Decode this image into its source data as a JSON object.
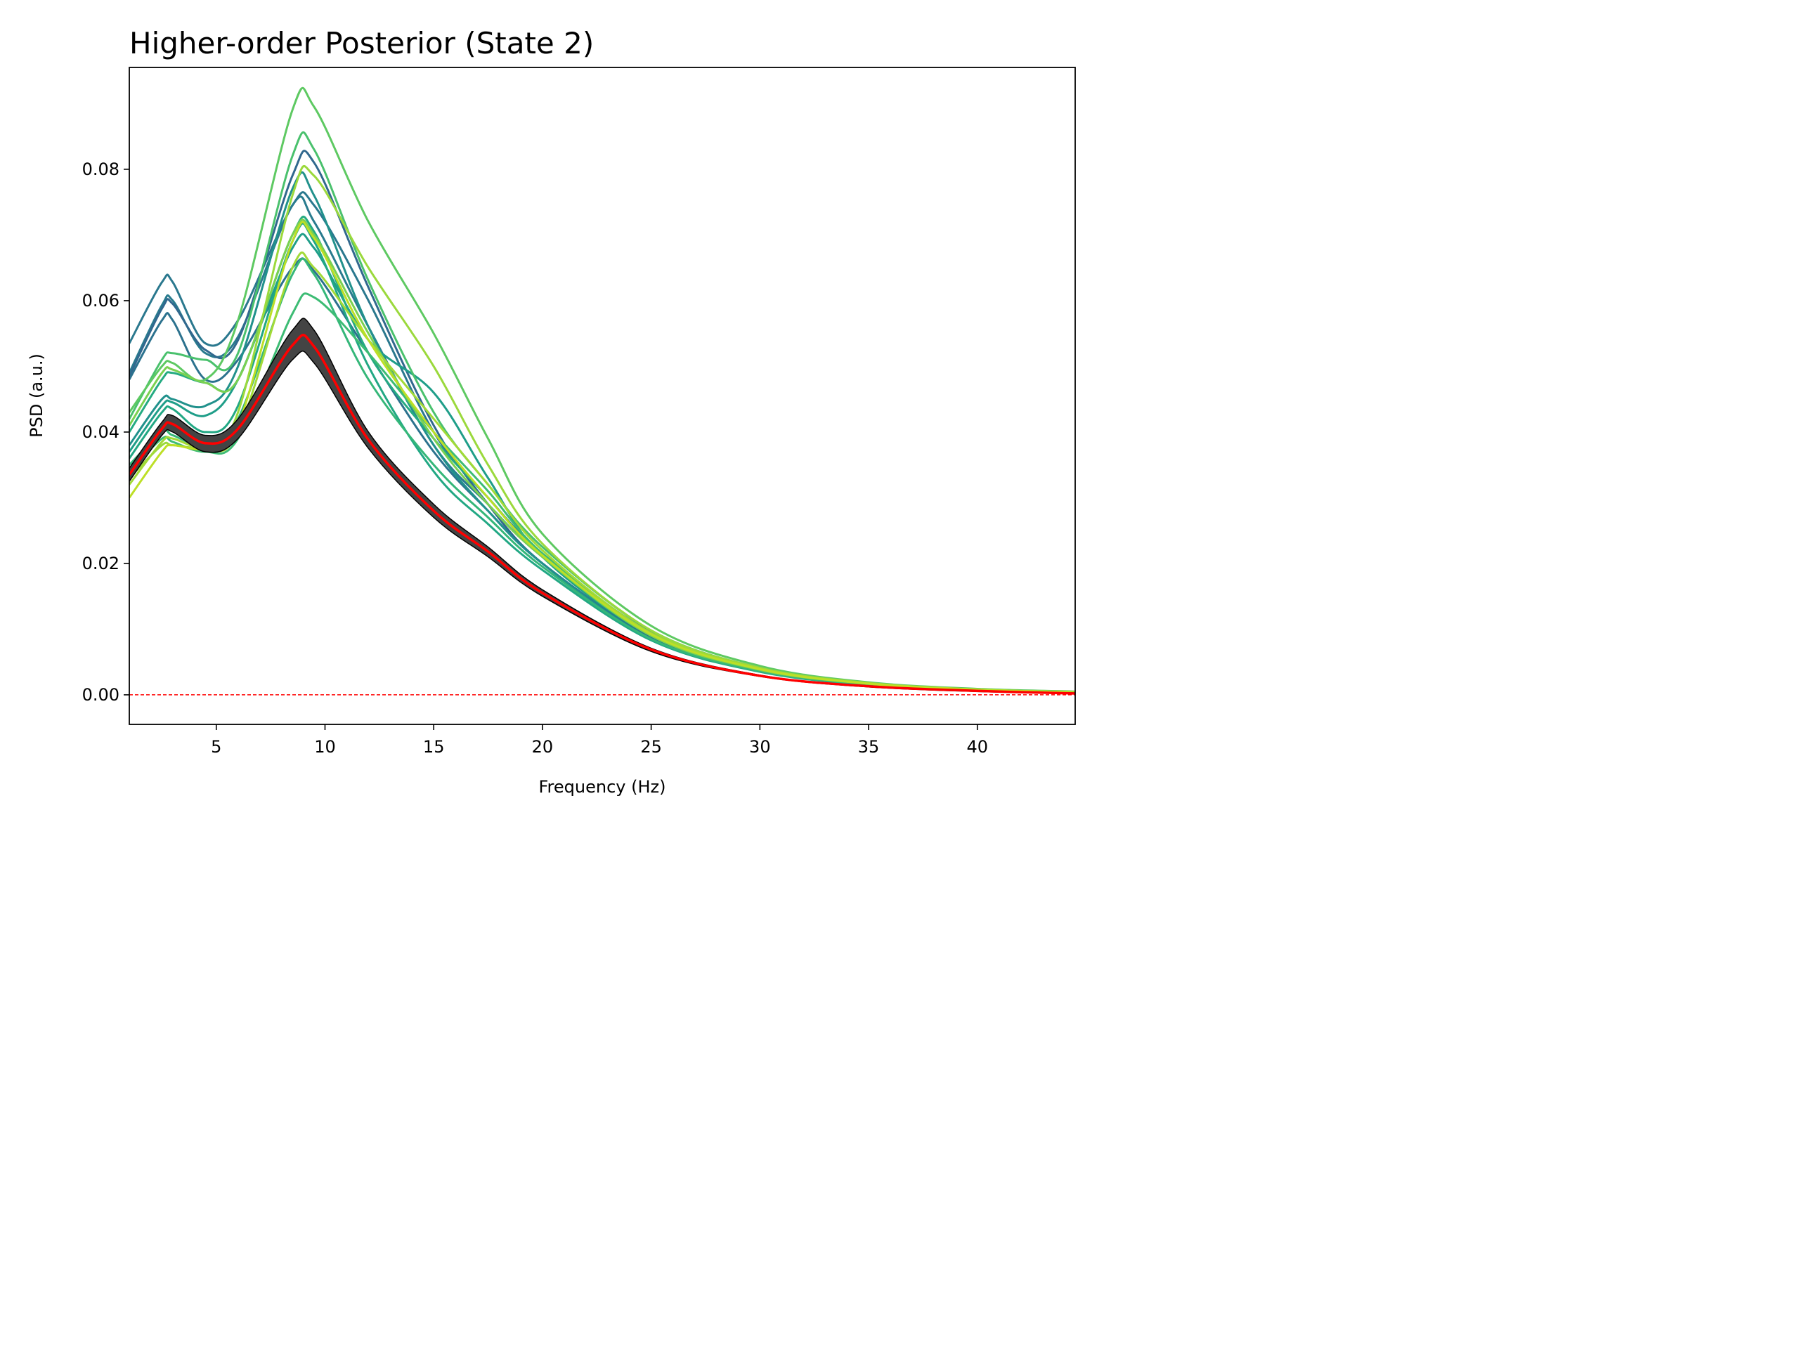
{
  "chart_data": {
    "type": "line",
    "title": "Higher-order Posterior (State 2)",
    "xlabel": "Frequency (Hz)",
    "ylabel": "PSD (a.u.)",
    "xlim": [
      1,
      44.5
    ],
    "ylim": [
      -0.0045,
      0.0955
    ],
    "xticks": [
      5,
      10,
      15,
      20,
      25,
      30,
      35,
      40
    ],
    "xtick_labels": [
      "5",
      "10",
      "15",
      "20",
      "25",
      "30",
      "35",
      "40"
    ],
    "yticks": [
      0.0,
      0.02,
      0.04,
      0.06,
      0.08
    ],
    "ytick_labels": [
      "0.00",
      "0.02",
      "0.04",
      "0.06",
      "0.08"
    ],
    "grid": false,
    "legend": "none",
    "reference_line": {
      "y": 0.0,
      "color": "#ff0000",
      "style": "dashed"
    },
    "x": [
      1,
      2.5,
      3,
      4.5,
      6,
      8.5,
      9.5,
      12,
      15,
      17.5,
      20,
      25,
      30,
      35,
      40,
      44.5
    ],
    "series": [
      {
        "color": "#2a788e",
        "values": [
          0.0535,
          0.0628,
          0.0628,
          0.0535,
          0.057,
          0.0745,
          0.0745,
          0.06,
          0.04,
          0.03,
          0.0215,
          0.0095,
          0.004,
          0.0018,
          0.0008,
          0.0004
        ]
      },
      {
        "color": "#297b8e",
        "values": [
          0.049,
          0.0593,
          0.06,
          0.052,
          0.0545,
          0.0745,
          0.072,
          0.056,
          0.038,
          0.029,
          0.021,
          0.0093,
          0.0039,
          0.0017,
          0.0008,
          0.0004
        ]
      },
      {
        "color": "#31688e",
        "values": [
          0.0485,
          0.0588,
          0.0595,
          0.0525,
          0.054,
          0.079,
          0.081,
          0.062,
          0.041,
          0.029,
          0.02,
          0.0088,
          0.0037,
          0.0016,
          0.0007,
          0.0003
        ]
      },
      {
        "color": "#2c728e",
        "values": [
          0.048,
          0.057,
          0.057,
          0.048,
          0.051,
          0.065,
          0.0645,
          0.052,
          0.037,
          0.028,
          0.02,
          0.0088,
          0.0037,
          0.0016,
          0.0007,
          0.0003
        ]
      },
      {
        "color": "#21918c",
        "values": [
          0.038,
          0.045,
          0.045,
          0.044,
          0.05,
          0.077,
          0.076,
          0.056,
          0.038,
          0.028,
          0.02,
          0.0085,
          0.0036,
          0.0016,
          0.0007,
          0.0003
        ]
      },
      {
        "color": "#1f9e89",
        "values": [
          0.037,
          0.044,
          0.0445,
          0.0425,
          0.048,
          0.068,
          0.068,
          0.054,
          0.046,
          0.033,
          0.021,
          0.009,
          0.0038,
          0.0017,
          0.0008,
          0.0004
        ]
      },
      {
        "color": "#25ab82",
        "values": [
          0.04,
          0.048,
          0.049,
          0.0475,
          0.048,
          0.07,
          0.0705,
          0.052,
          0.039,
          0.03,
          0.021,
          0.009,
          0.0038,
          0.0017,
          0.0008,
          0.0004
        ]
      },
      {
        "color": "#22a884",
        "values": [
          0.036,
          0.043,
          0.0435,
          0.04,
          0.044,
          0.069,
          0.069,
          0.05,
          0.034,
          0.026,
          0.019,
          0.0083,
          0.0035,
          0.0015,
          0.0007,
          0.0003
        ]
      },
      {
        "color": "#35b779",
        "values": [
          0.035,
          0.04,
          0.0395,
          0.038,
          0.042,
          0.064,
          0.064,
          0.048,
          0.035,
          0.027,
          0.0195,
          0.0085,
          0.0036,
          0.0016,
          0.0007,
          0.0003
        ]
      },
      {
        "color": "#3dbc74",
        "values": [
          0.034,
          0.039,
          0.0385,
          0.037,
          0.039,
          0.058,
          0.0605,
          0.052,
          0.04,
          0.031,
          0.0215,
          0.0093,
          0.0039,
          0.0017,
          0.0008,
          0.0004
        ]
      },
      {
        "color": "#4ac16d",
        "values": [
          0.042,
          0.051,
          0.052,
          0.051,
          0.052,
          0.082,
          0.083,
          0.063,
          0.043,
          0.032,
          0.0225,
          0.0098,
          0.0041,
          0.0018,
          0.0008,
          0.0004
        ]
      },
      {
        "color": "#5ec962",
        "values": [
          0.043,
          0.05,
          0.0505,
          0.048,
          0.057,
          0.089,
          0.0895,
          0.072,
          0.055,
          0.039,
          0.0245,
          0.0105,
          0.0044,
          0.0019,
          0.0009,
          0.0005
        ]
      },
      {
        "color": "#7ad151",
        "values": [
          0.041,
          0.049,
          0.0495,
          0.0475,
          0.048,
          0.07,
          0.07,
          0.055,
          0.039,
          0.029,
          0.021,
          0.009,
          0.0038,
          0.0017,
          0.0008,
          0.0004
        ]
      },
      {
        "color": "#9bd93c",
        "values": [
          0.033,
          0.038,
          0.038,
          0.038,
          0.043,
          0.076,
          0.079,
          0.065,
          0.05,
          0.035,
          0.023,
          0.0098,
          0.0041,
          0.0018,
          0.0008,
          0.0004
        ]
      },
      {
        "color": "#a2da37",
        "values": [
          0.032,
          0.0385,
          0.039,
          0.0375,
          0.04,
          0.065,
          0.065,
          0.054,
          0.042,
          0.032,
          0.022,
          0.0094,
          0.004,
          0.0017,
          0.0008,
          0.0004
        ]
      },
      {
        "color": "#bddf26",
        "values": [
          0.03,
          0.037,
          0.038,
          0.0375,
          0.041,
          0.069,
          0.0695,
          0.054,
          0.04,
          0.03,
          0.0212,
          0.0092,
          0.0039,
          0.0017,
          0.0008,
          0.0004
        ]
      }
    ],
    "mean_band": {
      "color": "#000000",
      "upper": [
        0.0345,
        0.0415,
        0.0425,
        0.0395,
        0.042,
        0.0555,
        0.0555,
        0.04,
        0.029,
        0.0225,
        0.016,
        0.0071,
        0.003,
        0.0013,
        0.0006,
        0.0003
      ],
      "lower": [
        0.0325,
        0.0395,
        0.04,
        0.037,
        0.039,
        0.051,
        0.0505,
        0.0375,
        0.027,
        0.021,
        0.015,
        0.0066,
        0.0028,
        0.0012,
        0.0005,
        0.0002
      ]
    },
    "mean_line": {
      "color": "#ff0000",
      "values": [
        0.0335,
        0.0405,
        0.0412,
        0.0383,
        0.0405,
        0.0532,
        0.053,
        0.0388,
        0.028,
        0.0218,
        0.0155,
        0.0069,
        0.0029,
        0.0013,
        0.0006,
        0.0002
      ]
    }
  }
}
